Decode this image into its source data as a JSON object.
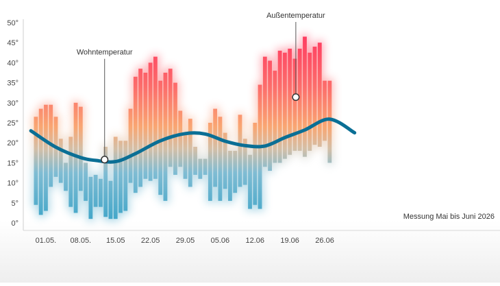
{
  "chart_data": {
    "type": "bar",
    "note": "Messung Mai bis Juni 2026",
    "y_ticks": [
      "0°",
      "5°",
      "10°",
      "15°",
      "20°",
      "25°",
      "30°",
      "35°",
      "40°",
      "45°",
      "50°"
    ],
    "ylim": [
      0,
      50
    ],
    "x_tick_labels": [
      "01.05.",
      "08.05.",
      "15.05",
      "22.05",
      "29.05",
      "05.06",
      "12.06",
      "19.06",
      "26.06"
    ],
    "x_tick_days": [
      3,
      10,
      17,
      24,
      31,
      38,
      45,
      52,
      59
    ],
    "bar_day_range": [
      1,
      62
    ],
    "annotations": [
      {
        "label": "Wohntemperatur",
        "day": 14.8,
        "value": 15.8,
        "label_value": 42.0
      },
      {
        "label": "Außentemperatur",
        "day": 53.2,
        "value": 31.4,
        "label_value": 51.2
      }
    ],
    "series": [
      {
        "type": "range_bar",
        "min": [
          4.5,
          2,
          3,
          9,
          11.5,
          10,
          8,
          4,
          2.5,
          8,
          5.5,
          1,
          4,
          4,
          1.5,
          1,
          1,
          2.5,
          3,
          10,
          7.5,
          9,
          11,
          10.5,
          11,
          7,
          5.5,
          14,
          12,
          14,
          11,
          9,
          12,
          11,
          12,
          5.5,
          9,
          5.5,
          8.5,
          5.5,
          7.5,
          9,
          9.5,
          3.5,
          4.5,
          3.5,
          14,
          13,
          15,
          15,
          16,
          17,
          18,
          18,
          16.5,
          18,
          19.5,
          19,
          20.5,
          15
        ],
        "max": [
          26.5,
          28.5,
          29.5,
          29.5,
          26.5,
          21,
          15,
          21.5,
          30,
          29,
          15,
          11.5,
          12,
          11,
          19,
          10.5,
          21.5,
          20.5,
          20.5,
          28.5,
          36.5,
          38.5,
          37.5,
          40,
          41.5,
          35.5,
          37.5,
          38.5,
          35,
          28,
          22.5,
          26,
          19,
          16,
          16,
          25,
          28.5,
          26.5,
          22.5,
          18,
          18,
          27,
          21,
          17,
          25,
          34.5,
          41.5,
          40.5,
          38,
          43,
          42.5,
          43.5,
          41,
          43.5,
          46.5,
          42.5,
          44,
          45,
          35.5,
          35.5
        ]
      },
      {
        "type": "line",
        "x_days": [
          0,
          5,
          10,
          13,
          17,
          21,
          26,
          31,
          35,
          39,
          43,
          47,
          51,
          55,
          60,
          65
        ],
        "values": [
          23,
          18.9,
          16.3,
          15.6,
          15.3,
          17.3,
          20.5,
          22.3,
          22.2,
          20.4,
          19.3,
          19.2,
          21.3,
          23.2,
          25.9,
          22.5
        ]
      }
    ]
  }
}
